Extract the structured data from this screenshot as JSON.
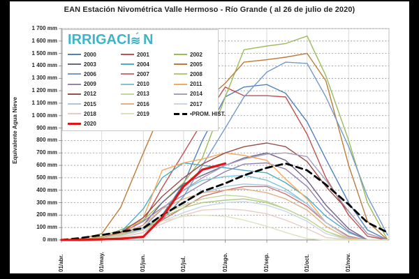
{
  "header": {
    "title": "EAN Estación Nivométrica Valle Hermoso - Río Grande  ( al 26 de julio de 2020)"
  },
  "logo": {
    "text_pre": "IRRIGACI",
    "text_post": "N",
    "wave_glyph": "≋",
    "accent_glyph": "´",
    "color": "#3FB4C8"
  },
  "axes": {
    "y_ticks": [
      "1 700 mm",
      "1 600 mm",
      "1 500 mm",
      "1 400 mm",
      "1 300 mm",
      "1 200 mm",
      "1 100 mm",
      "1 000 mm",
      "900 mm",
      "800 mm",
      "700 mm",
      "600 mm",
      "500 mm",
      "400 mm",
      "300 mm",
      "200 mm",
      "100 mm",
      "0 mm"
    ],
    "x_ticks": [
      "01/abr.",
      "01/may.",
      "01/jun.",
      "01/jul.",
      "01/ago.",
      "01/sep.",
      "01/oct.",
      "01/nov."
    ],
    "x_tick_day_offsets": [
      0,
      30,
      61,
      91,
      122,
      153,
      183,
      214
    ],
    "total_days": 244
  },
  "chart_data": {
    "type": "line",
    "title": "EAN Estación Nivométrica Valle Hermoso - Río Grande  ( al 26 de julio de 2020)",
    "xlabel": "",
    "ylabel": "Equivalente Agua Nieve",
    "ylim": [
      0,
      1700
    ],
    "y_unit": "mm",
    "y_tick_step": 100,
    "grid": true,
    "legend_position": "top-left overlay",
    "x_dates": [
      "01/abr",
      "15/abr",
      "01/may",
      "15/may",
      "01/jun",
      "15/jun",
      "01/jul",
      "15/jul",
      "01/ago",
      "15/ago",
      "01/sep",
      "15/sep",
      "01/oct",
      "15/oct",
      "01/nov",
      "15/nov",
      "30/nov"
    ],
    "x_day_offsets": [
      0,
      14,
      30,
      44,
      61,
      75,
      91,
      105,
      122,
      136,
      153,
      167,
      183,
      197,
      214,
      228,
      243
    ],
    "series": [
      {
        "name": "2000",
        "color": "#4F81BD",
        "width": 1.4,
        "dash": null,
        "values": [
          0,
          0,
          10,
          30,
          80,
          200,
          450,
          800,
          1150,
          1230,
          1250,
          1180,
          950,
          650,
          300,
          80,
          0
        ]
      },
      {
        "name": "2001",
        "color": "#C0504D",
        "width": 1.4,
        "dash": null,
        "values": [
          0,
          0,
          20,
          60,
          150,
          420,
          700,
          950,
          1230,
          1160,
          1160,
          1150,
          850,
          500,
          200,
          30,
          0
        ]
      },
      {
        "name": "2002",
        "color": "#9BBB59",
        "width": 1.4,
        "dash": null,
        "values": [
          0,
          0,
          30,
          80,
          160,
          300,
          460,
          660,
          1150,
          1530,
          1560,
          1580,
          1640,
          1320,
          800,
          300,
          0
        ]
      },
      {
        "name": "2003",
        "color": "#6F6287",
        "width": 1.4,
        "dash": null,
        "values": [
          0,
          0,
          10,
          40,
          120,
          300,
          450,
          520,
          600,
          660,
          700,
          640,
          480,
          280,
          90,
          0,
          0
        ]
      },
      {
        "name": "2004",
        "color": "#4BACC6",
        "width": 1.4,
        "dash": null,
        "values": [
          0,
          0,
          20,
          60,
          250,
          500,
          620,
          600,
          580,
          560,
          540,
          460,
          340,
          190,
          60,
          0,
          0
        ]
      },
      {
        "name": "2005",
        "color": "#BE7B38",
        "width": 1.4,
        "dash": null,
        "values": [
          0,
          10,
          50,
          260,
          700,
          1050,
          1080,
          1100,
          1260,
          1430,
          1450,
          1470,
          1500,
          1280,
          600,
          150,
          0
        ]
      },
      {
        "name": "2006",
        "color": "#729ACA",
        "width": 1.4,
        "dash": null,
        "values": [
          0,
          0,
          0,
          20,
          60,
          160,
          350,
          600,
          900,
          1150,
          1350,
          1430,
          1420,
          1150,
          750,
          350,
          40
        ]
      },
      {
        "name": "2007",
        "color": "#D1716F",
        "width": 1.4,
        "dash": null,
        "values": [
          0,
          0,
          10,
          30,
          80,
          160,
          260,
          350,
          400,
          430,
          430,
          370,
          270,
          140,
          30,
          0,
          0
        ]
      },
      {
        "name": "2008",
        "color": "#AFC97C",
        "width": 1.4,
        "dash": null,
        "values": [
          0,
          0,
          10,
          30,
          80,
          180,
          260,
          300,
          320,
          330,
          300,
          250,
          170,
          70,
          0,
          0,
          0
        ]
      },
      {
        "name": "2009",
        "color": "#9583AF",
        "width": 1.4,
        "dash": null,
        "values": [
          0,
          0,
          20,
          50,
          150,
          260,
          360,
          450,
          550,
          610,
          620,
          570,
          430,
          240,
          70,
          0,
          0
        ]
      },
      {
        "name": "2010",
        "color": "#7FC3D4",
        "width": 1.4,
        "dash": null,
        "values": [
          0,
          0,
          10,
          30,
          100,
          250,
          400,
          480,
          510,
          520,
          480,
          410,
          290,
          140,
          20,
          0,
          0
        ]
      },
      {
        "name": "2011",
        "color": "#F9A65B",
        "width": 1.4,
        "dash": null,
        "values": [
          0,
          0,
          10,
          30,
          180,
          560,
          620,
          650,
          700,
          680,
          640,
          490,
          330,
          140,
          20,
          0,
          0
        ]
      },
      {
        "name": "2012",
        "color": "#9E4A47",
        "width": 1.4,
        "dash": null,
        "values": [
          0,
          0,
          20,
          60,
          180,
          350,
          500,
          610,
          700,
          750,
          780,
          750,
          630,
          430,
          230,
          50,
          0
        ]
      },
      {
        "name": "2013",
        "color": "#C3D69B",
        "width": 1.4,
        "dash": null,
        "values": [
          0,
          0,
          10,
          40,
          100,
          200,
          280,
          330,
          360,
          350,
          310,
          250,
          170,
          70,
          10,
          0,
          0
        ]
      },
      {
        "name": "2014",
        "color": "#A3A0BD",
        "width": 1.4,
        "dash": null,
        "values": [
          0,
          0,
          10,
          30,
          100,
          250,
          400,
          500,
          600,
          650,
          690,
          700,
          670,
          480,
          230,
          50,
          0
        ]
      },
      {
        "name": "2015",
        "color": "#A9C7E3",
        "width": 1.4,
        "dash": null,
        "values": [
          0,
          0,
          10,
          30,
          90,
          200,
          300,
          380,
          430,
          450,
          440,
          390,
          290,
          140,
          20,
          0,
          0
        ]
      },
      {
        "name": "2016",
        "color": "#E2B182",
        "width": 1.4,
        "dash": null,
        "values": [
          0,
          0,
          20,
          50,
          120,
          250,
          330,
          380,
          400,
          410,
          380,
          330,
          240,
          110,
          10,
          0,
          0
        ]
      },
      {
        "name": "2017",
        "color": "#C8D7E8",
        "width": 1.4,
        "dash": null,
        "values": [
          0,
          0,
          0,
          20,
          60,
          150,
          220,
          270,
          300,
          310,
          280,
          230,
          150,
          50,
          0,
          0,
          0
        ]
      },
      {
        "name": "2018",
        "color": "#E9CBC9",
        "width": 1.4,
        "dash": null,
        "values": [
          0,
          0,
          10,
          20,
          60,
          130,
          200,
          240,
          250,
          240,
          210,
          160,
          90,
          20,
          0,
          0,
          0
        ]
      },
      {
        "name": "2019",
        "color": "#D9E4BE",
        "width": 1.4,
        "dash": null,
        "values": [
          0,
          0,
          10,
          30,
          80,
          150,
          190,
          200,
          190,
          160,
          110,
          60,
          10,
          0,
          0,
          0,
          0
        ]
      },
      {
        "name": "PROM. HIST.",
        "color": "#000000",
        "width": 2.8,
        "dash": "9 6",
        "values": [
          0,
          15,
          40,
          65,
          95,
          200,
          300,
          390,
          455,
          520,
          580,
          615,
          560,
          445,
          285,
          140,
          60
        ]
      },
      {
        "name": "2020",
        "color": "#E31414",
        "width": 3.2,
        "dash": null,
        "values": [
          0,
          0,
          5,
          10,
          25,
          180,
          430,
          565,
          615,
          null,
          null,
          null,
          null,
          null,
          null,
          null,
          null
        ]
      }
    ]
  },
  "colors": {
    "stage_bg": "#000000",
    "panel_bg": "#ffffff",
    "grid_horizontal": "#8c8c8c",
    "grid_vertical": "#d9d9d9",
    "plot_border": "#bfbfbf",
    "axis": "#7f7f7f"
  }
}
